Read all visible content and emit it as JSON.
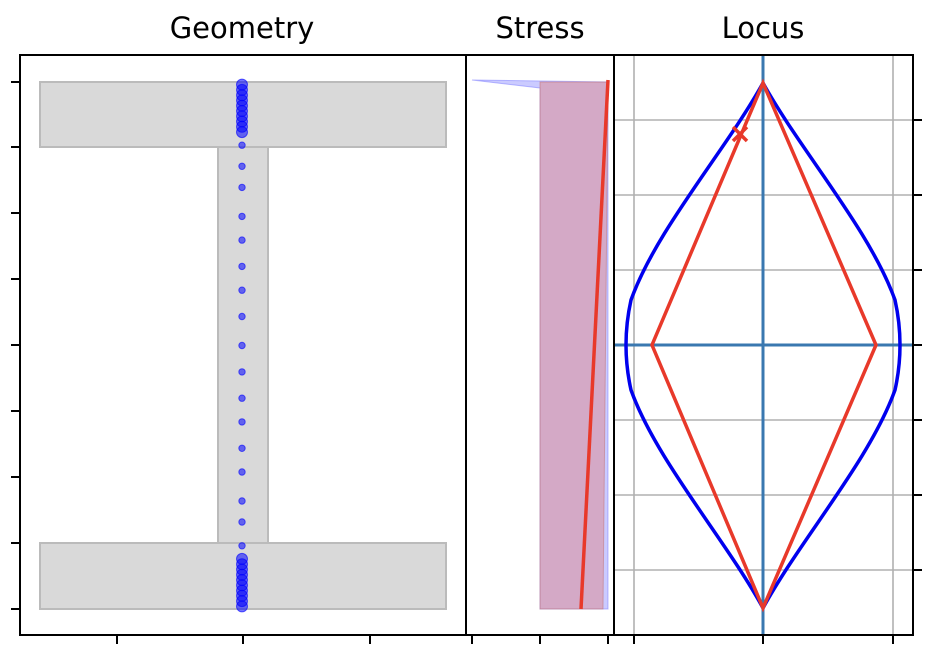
{
  "chart_data": [
    {
      "type": "scatter",
      "title": "Geometry",
      "description_of_shapes": "I-beam cross section with fiber points",
      "section": {
        "top_flange": {
          "x": [
            -0.4,
            0.4
          ],
          "y": [
            0.8,
            1.0
          ]
        },
        "web": {
          "x": [
            -0.05,
            0.05
          ],
          "y": [
            -0.8,
            0.8
          ]
        },
        "bottom_flange": {
          "x": [
            -0.4,
            0.4
          ],
          "y": [
            -1.0,
            -0.8
          ]
        }
      },
      "fiber_points": {
        "x": 0,
        "y": [
          0.99,
          0.97,
          0.95,
          0.93,
          0.91,
          0.89,
          0.87,
          0.85,
          0.83,
          0.81,
          0.76,
          0.68,
          0.6,
          0.49,
          0.4,
          0.3,
          0.21,
          0.11,
          0.0,
          -0.1,
          -0.2,
          -0.29,
          -0.39,
          -0.48,
          -0.59,
          -0.67,
          -0.76,
          -0.81,
          -0.83,
          -0.85,
          -0.87,
          -0.89,
          -0.91,
          -0.93,
          -0.95,
          -0.97,
          -0.99
        ],
        "color": "#0000ff"
      },
      "xlim": [
        -0.4,
        0.4
      ],
      "ylim": [
        -1.0,
        1.0
      ]
    },
    {
      "type": "area",
      "title": "Stress",
      "y": [
        -1,
        1
      ],
      "series": [
        {
          "values_x": [
            0.9,
            1.0
          ],
          "color": "#e8392a",
          "style": "line"
        },
        {
          "fill_x": [
            [
              0.0,
              1.0
            ],
            [
              0.0,
              0.99
            ]
          ],
          "color": "#cc3333",
          "style": "fill"
        },
        {
          "fill_x": [
            [
              0.0,
              1.0
            ],
            [
              -1.0,
              1.0
            ]
          ],
          "color": "#6666ff",
          "style": "fill"
        }
      ],
      "xlim": [
        -1,
        1
      ],
      "ylim": [
        -1,
        1
      ]
    },
    {
      "type": "line",
      "title": "Locus",
      "series": [
        {
          "name": "",
          "color": "#0000ee",
          "shape": "smooth diamond",
          "points": [
            [
              0,
              1
            ],
            [
              0.9,
              0
            ],
            [
              0,
              -1
            ],
            [
              -0.9,
              0
            ],
            [
              0,
              1
            ]
          ]
        },
        {
          "name": "",
          "color": "#e8392a",
          "shape": "diamond",
          "points": [
            [
              0,
              1
            ],
            [
              0.75,
              0
            ],
            [
              0,
              -1
            ],
            [
              -0.75,
              0
            ],
            [
              0,
              1
            ]
          ]
        }
      ],
      "marker": {
        "symbol": "x",
        "x": -0.15,
        "y": 0.85,
        "color": "#e8392a"
      },
      "axes_color": "#3a78b0",
      "grid": true,
      "xlim": [
        -1,
        1
      ],
      "ylim": [
        -1.05,
        1.05
      ]
    }
  ]
}
